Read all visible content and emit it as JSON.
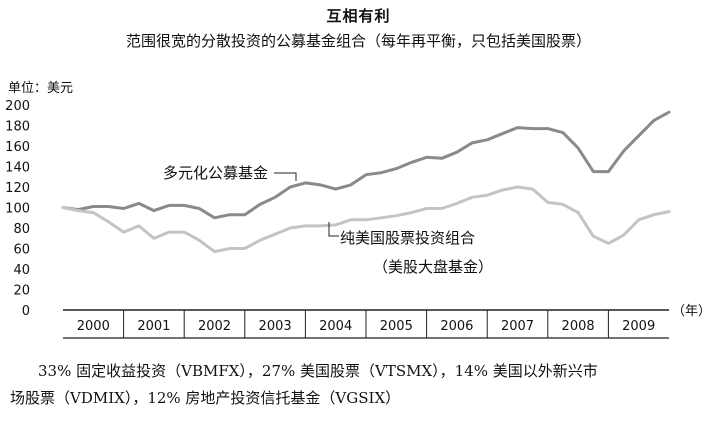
{
  "header": {
    "title": "互相有利",
    "subtitle": "范围很宽的分散投资的公募基金组合（每年再平衡，只包括美国股票）",
    "unit_label": "单位：美元",
    "year_suffix": "（年）"
  },
  "note": {
    "line1": "33% 固定收益投资（VBMFX），27% 美国股票（VTSMX），14% 美国以外新兴市",
    "line2": "场股票（VDMIX），12% 房地产投资信托基金（VGSIX）"
  },
  "chart_data": {
    "type": "line",
    "title": "互相有利",
    "subtitle": "范围很宽的分散投资的公募基金组合（每年再平衡，只包括美国股票）",
    "ylabel": "单位：美元",
    "xlabel": "（年）",
    "ylim": [
      0,
      200
    ],
    "xlim": [
      2000.0,
      2010.0
    ],
    "yticks": [
      "0",
      "20",
      "40",
      "60",
      "80",
      "100",
      "120",
      "140",
      "160",
      "180",
      "200"
    ],
    "xticks": [
      "2000",
      "2001",
      "2002",
      "2003",
      "2004",
      "2005",
      "2006",
      "2007",
      "2008",
      "2009"
    ],
    "grid": false,
    "colors": {
      "diversified": "#8a8a8a",
      "us_only": "#c4c4c4",
      "axis": "#222222"
    },
    "series": [
      {
        "name": "多元化公募基金",
        "x": [
          2000.0,
          2000.25,
          2000.5,
          2000.75,
          2001.0,
          2001.25,
          2001.5,
          2001.75,
          2002.0,
          2002.25,
          2002.5,
          2002.75,
          2003.0,
          2003.25,
          2003.5,
          2003.75,
          2004.0,
          2004.25,
          2004.5,
          2004.75,
          2005.0,
          2005.25,
          2005.5,
          2005.75,
          2006.0,
          2006.25,
          2006.5,
          2006.75,
          2007.0,
          2007.25,
          2007.5,
          2007.75,
          2008.0,
          2008.25,
          2008.5,
          2008.75,
          2009.0,
          2009.25,
          2009.5,
          2009.75,
          2010.0
        ],
        "values": [
          100,
          98,
          101,
          101,
          99,
          104,
          97,
          102,
          102,
          99,
          90,
          93,
          93,
          103,
          110,
          120,
          124,
          122,
          118,
          122,
          132,
          134,
          138,
          144,
          149,
          148,
          154,
          163,
          166,
          172,
          178,
          177,
          177,
          173,
          158,
          135,
          135,
          155,
          170,
          185,
          193
        ]
      },
      {
        "name": "纯美国股票投资组合",
        "x": [
          2000.0,
          2000.25,
          2000.5,
          2000.75,
          2001.0,
          2001.25,
          2001.5,
          2001.75,
          2002.0,
          2002.25,
          2002.5,
          2002.75,
          2003.0,
          2003.25,
          2003.5,
          2003.75,
          2004.0,
          2004.25,
          2004.5,
          2004.75,
          2005.0,
          2005.25,
          2005.5,
          2005.75,
          2006.0,
          2006.25,
          2006.5,
          2006.75,
          2007.0,
          2007.25,
          2007.5,
          2007.75,
          2008.0,
          2008.25,
          2008.5,
          2008.75,
          2009.0,
          2009.25,
          2009.5,
          2009.75,
          2010.0
        ],
        "values": [
          100,
          97,
          95,
          86,
          76,
          82,
          70,
          76,
          76,
          68,
          57,
          60,
          60,
          68,
          74,
          80,
          82,
          82,
          83,
          88,
          88,
          90,
          92,
          95,
          99,
          99,
          104,
          110,
          112,
          117,
          120,
          118,
          105,
          103,
          95,
          72,
          65,
          73,
          88,
          93,
          96
        ]
      }
    ],
    "annotations": [
      {
        "text": "多元化公募基金",
        "series": 0
      },
      {
        "text": "纯美国股票投资组合",
        "series": 1
      },
      {
        "text": "（美股大盘基金）",
        "series": 1
      }
    ]
  }
}
